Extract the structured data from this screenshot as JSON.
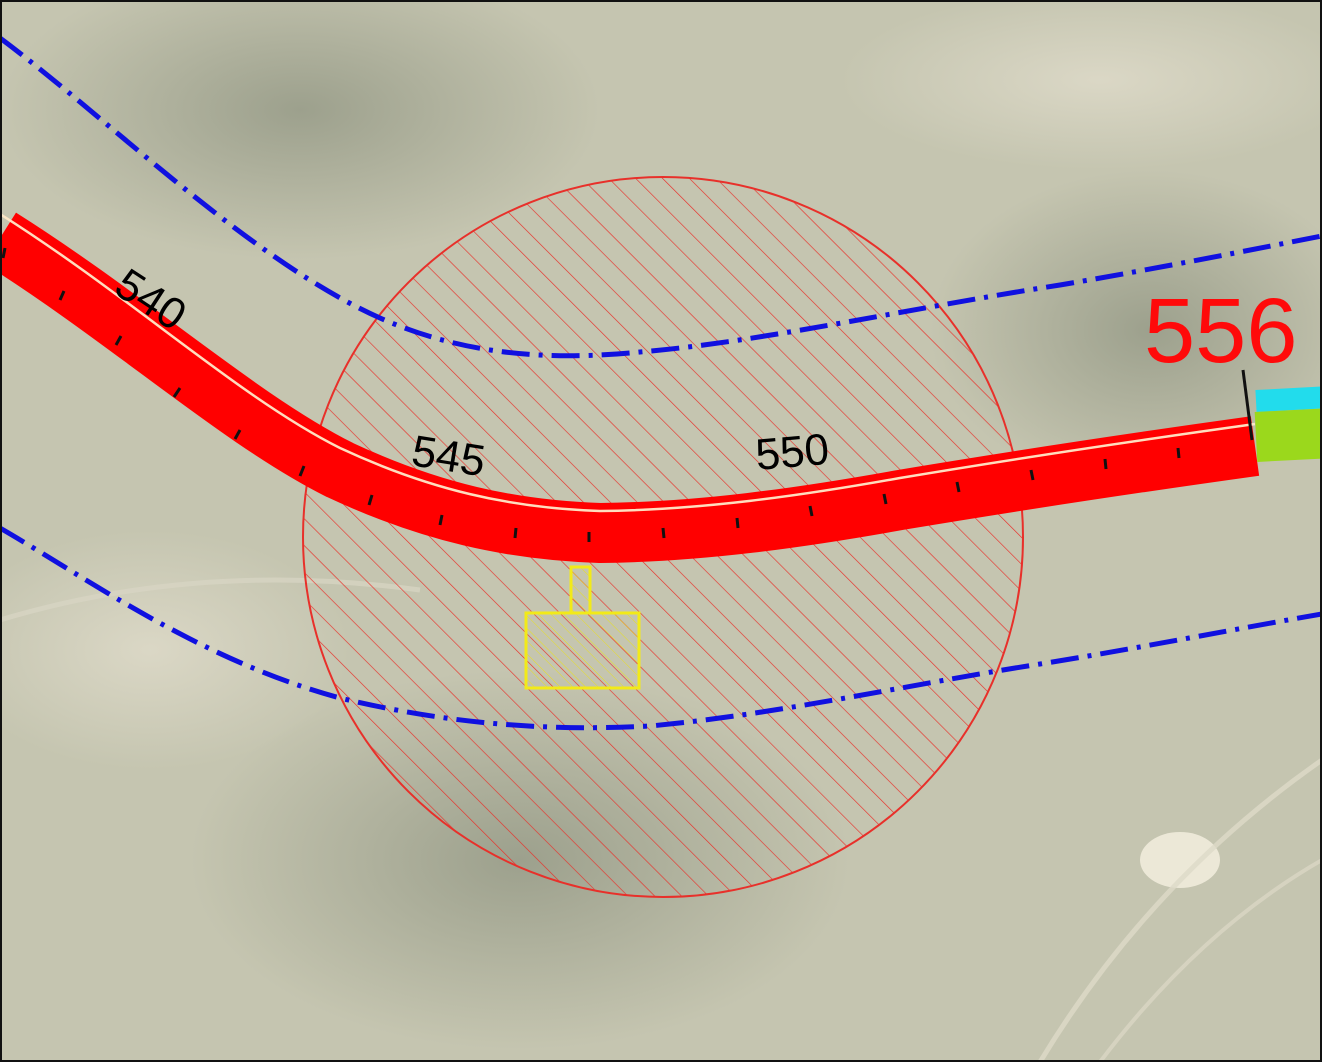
{
  "map": {
    "chainage_labels": [
      "540",
      "545",
      "550"
    ],
    "end_label": "556",
    "colors": {
      "road": "#ff0000",
      "road_edge": "#ffe9c8",
      "buffer": "#1010e0",
      "zone": "#e8302a",
      "structure": "#f2ea18",
      "segment_cyan": "#22dcec",
      "segment_green": "#9bd81c",
      "imagery_base": "#c9c8b4"
    }
  }
}
